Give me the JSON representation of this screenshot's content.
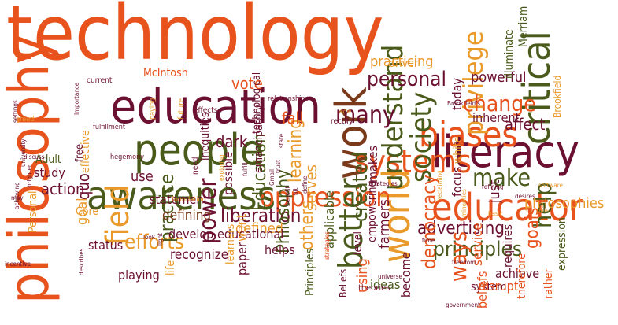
{
  "palette": {
    "orange": "#e8521c",
    "maroon": "#6b1030",
    "olive": "#4a5a1a",
    "amber": "#e99a2a",
    "brown": "#7a3a1a",
    "gray": "#8a8a6a",
    "background": "#ffffff"
  },
  "words": [
    {
      "text": "technology",
      "color": "orange"
    },
    {
      "text": "philosophy",
      "color": "orange"
    },
    {
      "text": "education",
      "color": "maroon"
    },
    {
      "text": "awareness",
      "color": "olive"
    },
    {
      "text": "people",
      "color": "olive"
    },
    {
      "text": "literacy",
      "color": "maroon"
    },
    {
      "text": "educator",
      "color": "orange"
    },
    {
      "text": "biases",
      "color": "orange"
    },
    {
      "text": "critical",
      "color": "olive"
    },
    {
      "text": "work",
      "color": "brown"
    },
    {
      "text": "world",
      "color": "amber"
    },
    {
      "text": "systems",
      "color": "orange"
    },
    {
      "text": "oppression",
      "color": "orange"
    },
    {
      "text": "better",
      "color": "olive"
    },
    {
      "text": "understand",
      "color": "olive"
    },
    {
      "text": "society",
      "color": "olive"
    },
    {
      "text": "privilege",
      "color": "amber"
    },
    {
      "text": "personal",
      "color": "maroon"
    },
    {
      "text": "field",
      "color": "amber"
    },
    {
      "text": "make",
      "color": "olive"
    },
    {
      "text": "help",
      "color": "olive"
    },
    {
      "text": "change",
      "color": "orange"
    },
    {
      "text": "many",
      "color": "maroon"
    },
    {
      "text": "created",
      "color": "olive"
    },
    {
      "text": "efforts",
      "color": "amber"
    },
    {
      "text": "practice",
      "color": "olive"
    },
    {
      "text": "liberation",
      "color": "maroon"
    },
    {
      "text": "advertising",
      "color": "maroon"
    },
    {
      "text": "principles",
      "color": "olive"
    },
    {
      "text": "democracy",
      "color": "orange"
    },
    {
      "text": "goals",
      "color": "orange"
    },
    {
      "text": "ways",
      "color": "orange"
    },
    {
      "text": "power",
      "color": "maroon"
    },
    {
      "text": "Education",
      "color": "olive"
    },
    {
      "text": "Philosophy",
      "color": "olive"
    },
    {
      "text": "learning",
      "color": "amber"
    },
    {
      "text": "serves",
      "color": "amber"
    },
    {
      "text": "others",
      "color": "amber"
    },
    {
      "text": "philosophies",
      "color": "amber"
    },
    {
      "text": "practicing",
      "color": "amber"
    },
    {
      "text": "defined",
      "color": "amber"
    },
    {
      "text": "defining",
      "color": "brown"
    },
    {
      "text": "recognize",
      "color": "maroon"
    },
    {
      "text": "develop",
      "color": "maroon"
    },
    {
      "text": "statement",
      "color": "maroon"
    },
    {
      "text": "educational",
      "color": "maroon"
    },
    {
      "text": "vote",
      "color": "orange"
    },
    {
      "text": "fall",
      "color": "orange"
    },
    {
      "text": "dark",
      "color": "maroon"
    },
    {
      "text": "use",
      "color": "maroon"
    },
    {
      "text": "action",
      "color": "maroon"
    },
    {
      "text": "study",
      "color": "maroon"
    },
    {
      "text": "status",
      "color": "maroon"
    },
    {
      "text": "quo",
      "color": "maroon"
    },
    {
      "text": "playing",
      "color": "maroon"
    },
    {
      "text": "goal",
      "color": "amber"
    },
    {
      "text": "Core",
      "color": "amber"
    },
    {
      "text": "Adult",
      "color": "olive"
    },
    {
      "text": "McIntosh",
      "color": "orange"
    },
    {
      "text": "powerful",
      "color": "maroon"
    },
    {
      "text": "inherent",
      "color": "maroon"
    },
    {
      "text": "affect",
      "color": "maroon"
    },
    {
      "text": "today",
      "color": "maroon"
    },
    {
      "text": "illuminate",
      "color": "olive"
    },
    {
      "text": "Merriam",
      "color": "olive"
    },
    {
      "text": "Brookfield",
      "color": "amber"
    },
    {
      "text": "focus",
      "color": "maroon"
    },
    {
      "text": "just",
      "color": "maroon"
    },
    {
      "text": "white",
      "color": "amber"
    },
    {
      "text": "makes",
      "color": "maroon"
    },
    {
      "text": "using",
      "color": "orange"
    },
    {
      "text": "ideas",
      "color": "olive"
    },
    {
      "text": "applicable",
      "color": "olive"
    },
    {
      "text": "Principles",
      "color": "olive"
    },
    {
      "text": "level",
      "color": "maroon"
    },
    {
      "text": "empowering",
      "color": "maroon"
    },
    {
      "text": "farmers",
      "color": "maroon"
    },
    {
      "text": "become",
      "color": "maroon"
    },
    {
      "text": "service",
      "color": "orange"
    },
    {
      "text": "system",
      "color": "maroon"
    },
    {
      "text": "disrupt",
      "color": "orange"
    },
    {
      "text": "beliefs",
      "color": "orange"
    },
    {
      "text": "achieve",
      "color": "maroon"
    },
    {
      "text": "therefore",
      "color": "orange"
    },
    {
      "text": "rather",
      "color": "orange"
    },
    {
      "text": "requires",
      "color": "maroon"
    },
    {
      "text": "expression",
      "color": "olive"
    },
    {
      "text": "helps",
      "color": "maroon"
    },
    {
      "text": "paper",
      "color": "maroon"
    },
    {
      "text": "want",
      "color": "amber"
    },
    {
      "text": "learners",
      "color": "amber"
    },
    {
      "text": "possible",
      "color": "maroon"
    },
    {
      "text": "emancipatory",
      "color": "maroon"
    },
    {
      "text": "inequities",
      "color": "maroon"
    },
    {
      "text": "technological",
      "color": "maroon"
    },
    {
      "text": "effective",
      "color": "amber"
    },
    {
      "text": "free",
      "color": "maroon"
    },
    {
      "text": "Personal",
      "color": "amber"
    },
    {
      "text": "life",
      "color": "amber"
    },
    {
      "text": "driver",
      "color": "amber"
    },
    {
      "text": "Beliefs",
      "color": "maroon"
    },
    {
      "text": "theories",
      "color": "maroon"
    },
    {
      "text": "need",
      "color": "maroon"
    },
    {
      "text": "future",
      "color": "amber"
    },
    {
      "text": "current",
      "color": "maroon"
    },
    {
      "text": "rectify",
      "color": "maroon"
    },
    {
      "text": "effects",
      "color": "maroon"
    },
    {
      "text": "relationships",
      "color": "maroon"
    },
    {
      "text": "hegemony",
      "color": "maroon"
    },
    {
      "text": "fulfillment",
      "color": "maroon"
    },
    {
      "text": "paying",
      "color": "amber"
    },
    {
      "text": "greed",
      "color": "amber"
    },
    {
      "text": "settings",
      "color": "maroon"
    },
    {
      "text": "Importance",
      "color": "maroon"
    },
    {
      "text": "discuss",
      "color": "maroon"
    },
    {
      "text": "university",
      "color": "maroon"
    },
    {
      "text": "may",
      "color": "maroon"
    },
    {
      "text": "look",
      "color": "maroon"
    },
    {
      "text": "light",
      "color": "maroon"
    },
    {
      "text": "brighter",
      "color": "maroon"
    },
    {
      "text": "achieving",
      "color": "maroon"
    },
    {
      "text": "incentive",
      "color": "maroon"
    },
    {
      "text": "describes",
      "color": "maroon"
    },
    {
      "text": "foundation",
      "color": "amber"
    },
    {
      "text": "exploring",
      "color": "amber"
    },
    {
      "text": "fulfill",
      "color": "maroon"
    },
    {
      "text": "trust",
      "color": "maroon"
    },
    {
      "text": "Gmail",
      "color": "maroon"
    },
    {
      "text": "bit",
      "color": "maroon"
    },
    {
      "text": "benefit",
      "color": "maroon"
    },
    {
      "text": "define",
      "color": "maroon"
    },
    {
      "text": "state",
      "color": "maroon"
    },
    {
      "text": "Strategies",
      "color": "maroon"
    },
    {
      "text": "reclaiming",
      "color": "amber"
    },
    {
      "text": "strategies",
      "color": "orange"
    },
    {
      "text": "universe",
      "color": "maroon"
    },
    {
      "text": "time",
      "color": "maroon"
    },
    {
      "text": "minorities",
      "color": "amber"
    },
    {
      "text": "basic",
      "color": "amber"
    },
    {
      "text": "refining",
      "color": "maroon"
    },
    {
      "text": "software",
      "color": "amber"
    },
    {
      "text": "desires",
      "color": "maroon"
    },
    {
      "text": "freedom",
      "color": "maroon"
    },
    {
      "text": "government",
      "color": "maroon"
    },
    {
      "text": "wow",
      "color": "amber"
    },
    {
      "text": "Brookfield's",
      "color": "maroon"
    },
    {
      "text": "plus",
      "color": "amber"
    }
  ]
}
